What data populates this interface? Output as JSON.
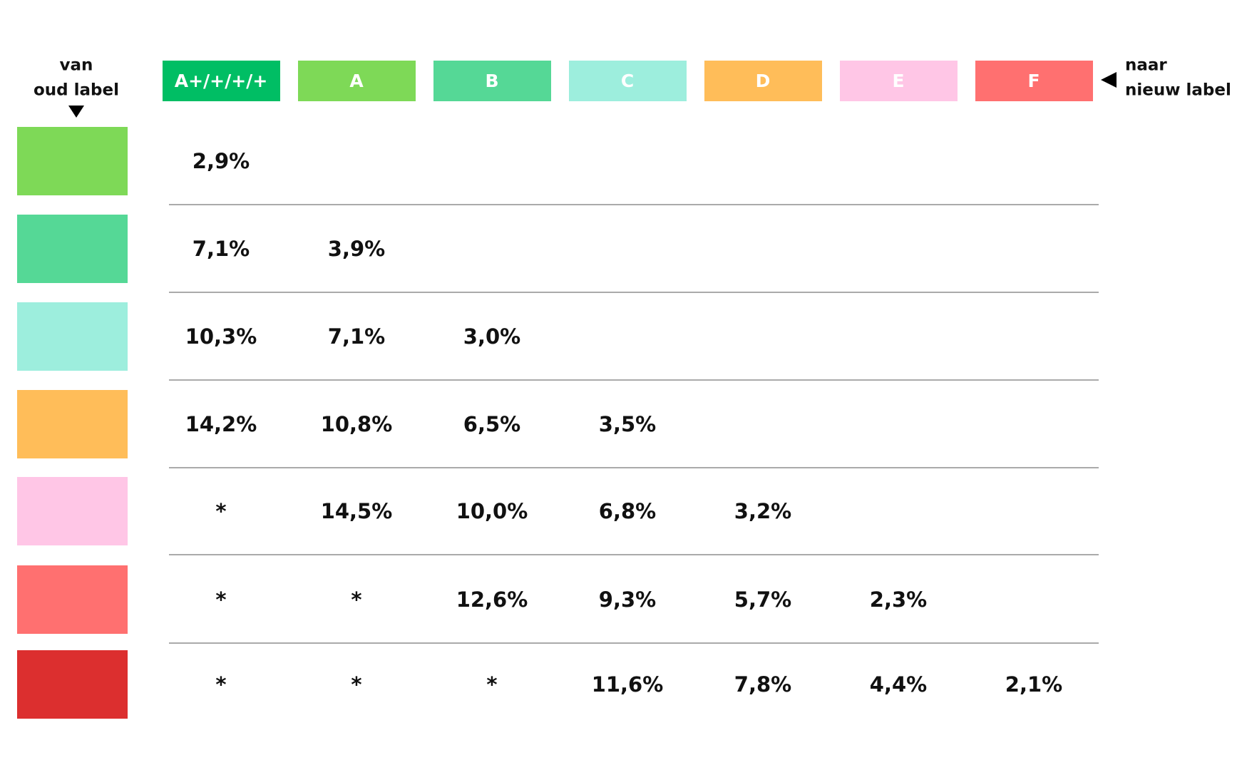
{
  "header": {
    "left_label": [
      "van",
      "oud label"
    ],
    "right_label": [
      "naar",
      "nieuw label"
    ],
    "columns": [
      "A+/+/+/+",
      "A",
      "B",
      "C",
      "D",
      "E",
      "F"
    ]
  },
  "table": {
    "rows": [
      [
        "2,9%"
      ],
      [
        "7,1%",
        "3,9%"
      ],
      [
        "10,3%",
        "7,1%",
        "3,0%"
      ],
      [
        "14,2%",
        "10,8%",
        "6,5%",
        "3,5%"
      ],
      [
        "*",
        "14,5%",
        "10,0%",
        "6,8%",
        "3,2%"
      ],
      [
        "*",
        "*",
        "12,6%",
        "9,3%",
        "5,7%",
        "2,3%"
      ],
      [
        "*",
        "*",
        "*",
        "11,6%",
        "7,8%",
        "4,4%",
        "2,1%"
      ]
    ]
  }
}
